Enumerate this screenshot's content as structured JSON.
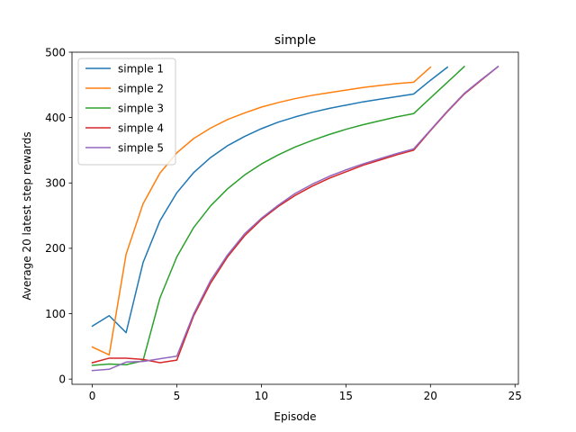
{
  "chart_data": {
    "type": "line",
    "title": "simple",
    "xlabel": "Episode",
    "ylabel": "Average 20 latest step rewards",
    "xlim": [
      -1.2,
      25.2
    ],
    "ylim": [
      -8,
      500
    ],
    "xticks": [
      0,
      5,
      10,
      15,
      20,
      25
    ],
    "yticks": [
      0,
      100,
      200,
      300,
      400,
      500
    ],
    "legend_position": "top-left",
    "grid": false,
    "series": [
      {
        "name": "simple 1",
        "color": "#1f77b4",
        "x": [
          0,
          1,
          2,
          3,
          4,
          5,
          6,
          7,
          8,
          9,
          10,
          11,
          12,
          13,
          14,
          15,
          16,
          17,
          18,
          19,
          20,
          21
        ],
        "y": [
          81,
          97,
          71,
          178,
          242,
          285,
          316,
          339,
          357,
          371,
          383,
          393,
          401,
          408,
          414,
          419,
          424,
          428,
          432,
          436,
          457,
          477
        ]
      },
      {
        "name": "simple 2",
        "color": "#ff7f0e",
        "x": [
          0,
          1,
          2,
          3,
          4,
          5,
          6,
          7,
          8,
          9,
          10,
          11,
          12,
          13,
          14,
          15,
          16,
          17,
          18,
          19,
          20
        ],
        "y": [
          49,
          37,
          191,
          268,
          315,
          346,
          368,
          384,
          397,
          407,
          416,
          423,
          429,
          434,
          438,
          442,
          446,
          449,
          452,
          454,
          477
        ]
      },
      {
        "name": "simple 3",
        "color": "#2ca02c",
        "x": [
          0,
          1,
          2,
          3,
          4,
          5,
          6,
          7,
          8,
          9,
          10,
          11,
          12,
          13,
          14,
          15,
          16,
          17,
          18,
          19,
          20,
          21,
          22
        ],
        "y": [
          21,
          23,
          22,
          28,
          124,
          187,
          232,
          265,
          291,
          312,
          329,
          343,
          355,
          365,
          374,
          382,
          389,
          395,
          401,
          406,
          430,
          454,
          478
        ]
      },
      {
        "name": "simple 4",
        "color": "#d62728",
        "x": [
          0,
          1,
          2,
          3,
          4,
          5,
          6,
          7,
          8,
          9,
          10,
          11,
          12,
          13,
          14,
          15,
          16,
          17,
          18,
          19,
          20,
          21,
          22,
          23,
          24
        ],
        "y": [
          25,
          32,
          32,
          30,
          25,
          29,
          97,
          147,
          187,
          219,
          244,
          264,
          281,
          295,
          307,
          317,
          327,
          335,
          343,
          350,
          380,
          409,
          436,
          457,
          478
        ]
      },
      {
        "name": "simple 5",
        "color": "#9467bd",
        "x": [
          0,
          1,
          2,
          3,
          4,
          5,
          6,
          7,
          8,
          9,
          10,
          11,
          12,
          13,
          14,
          15,
          16,
          17,
          18,
          19,
          20,
          21,
          22,
          23,
          24
        ],
        "y": [
          13,
          15,
          26,
          27,
          31,
          35,
          100,
          151,
          190,
          222,
          246,
          266,
          284,
          298,
          310,
          320,
          329,
          337,
          345,
          352,
          381,
          410,
          437,
          458,
          478
        ]
      }
    ]
  }
}
